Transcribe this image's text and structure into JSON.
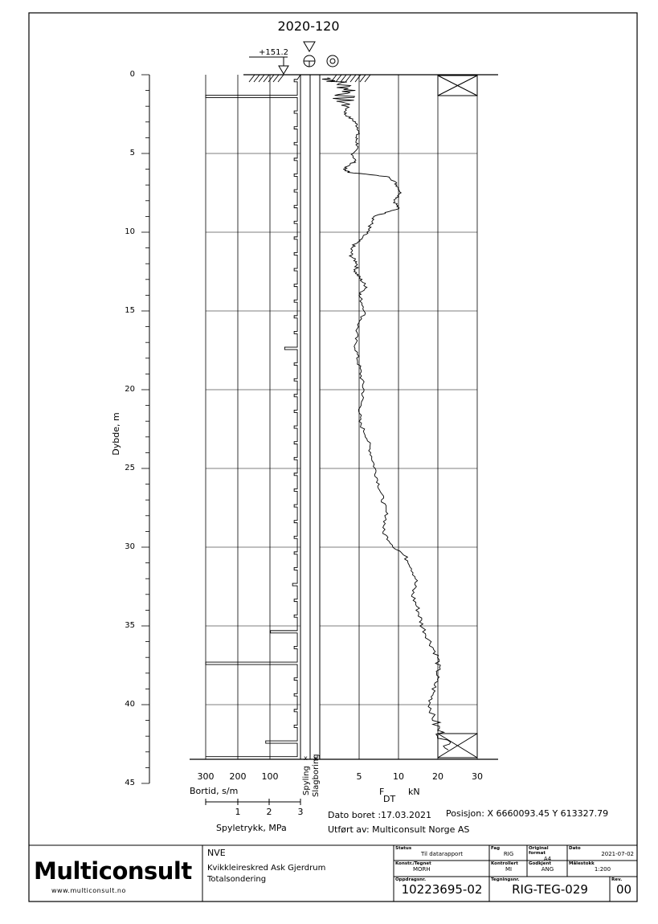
{
  "drawing": {
    "borehole_id": "2020-120",
    "elevation": "+151.2",
    "depth_axis_label": "Dybde, m",
    "depth_ticks": [
      "0",
      "5",
      "10",
      "15",
      "20",
      "25",
      "30",
      "35",
      "40",
      "45"
    ],
    "bortid_ticks": [
      "300",
      "200",
      "100"
    ],
    "bortid_label": "Bortid, s/m",
    "spyletrykk_ticks": [
      "1",
      "2",
      "3"
    ],
    "spyletrykk_label": "Spyletrykk, MPa",
    "column_label_1": "Spyling",
    "column_label_2": "Slagboring",
    "force_ticks": [
      "5",
      "10",
      "20",
      "30"
    ],
    "force_symbol": "F",
    "force_subscript": "DT",
    "force_unit": "kN",
    "date_text": "Dato boret :17.03.2021",
    "position_text": "Posisjon: X 6660093.45 Y 613327.79",
    "performed_by": "Utført av: Multiconsult Norge AS"
  },
  "title_block": {
    "logo": "Multiconsult",
    "website": "www.multiconsult.no",
    "client": "NVE",
    "project": "Kvikkleireskred Ask Gjerdrum",
    "subject": "Totalsondering",
    "status_label": "Status",
    "status_value": "Til datarapport",
    "fag_label": "Fag",
    "fag_value": "RIG",
    "format_label": "Original format",
    "format_value": "A4",
    "date_label": "Dato",
    "date_value": "2021-07-02",
    "konstr_label": "Konstr./Tegnet",
    "konstr_value": "MORH",
    "kontrollert_label": "Kontrollert",
    "kontrollert_value": "MI",
    "godkjent_label": "Godkjent",
    "godkjent_value": "ANG",
    "scale_label": "Målestokk",
    "scale_value": "1:200",
    "oppdrag_label": "Oppdragsnr.",
    "oppdrag_value": "10223695-02",
    "tegning_label": "Tegningsnr.",
    "tegning_value": "RIG-TEG-029",
    "rev_label": "Rev.",
    "rev_value": "00"
  },
  "chart_data": {
    "type": "line",
    "depth_range": [
      0,
      45
    ],
    "force_axis": {
      "label": "F DT kN",
      "ticks": [
        5,
        10,
        20,
        30
      ]
    },
    "force_profile": {
      "name": "F DT",
      "depth": [
        0.2,
        0.5,
        1.0,
        1.5,
        2.0,
        2.5,
        3.0,
        3.5,
        4.0,
        4.5,
        5.0,
        5.5,
        6.0,
        6.2,
        6.5,
        7.0,
        7.5,
        8.0,
        8.5,
        9.0,
        9.5,
        10.0,
        10.5,
        11.0,
        11.5,
        12.0,
        12.5,
        13.0,
        13.5,
        14.0,
        15.0,
        16.0,
        17.0,
        18.0,
        19.0,
        20.0,
        21.0,
        22.0,
        23.0,
        24.0,
        25.0,
        26.0,
        27.0,
        28.0,
        29.0,
        30.0,
        31.0,
        32.0,
        33.0,
        34.0,
        35.0,
        36.0,
        37.0,
        38.0,
        39.0,
        40.0,
        41.0,
        42.0,
        43.0
      ],
      "force": [
        1.0,
        2.5,
        4.0,
        2.8,
        3.5,
        3.2,
        4.5,
        5.0,
        4.6,
        4.8,
        4.2,
        4.5,
        3.0,
        3.8,
        9.0,
        9.8,
        10.5,
        9.5,
        10.0,
        7.0,
        6.5,
        6.0,
        5.0,
        4.0,
        4.0,
        4.8,
        4.5,
        5.2,
        6.0,
        5.0,
        5.8,
        4.8,
        4.5,
        4.8,
        5.2,
        5.6,
        5.2,
        5.0,
        6.0,
        6.5,
        7.0,
        7.5,
        8.0,
        8.5,
        8.0,
        9.5,
        13.0,
        14.5,
        13.5,
        15.0,
        16.0,
        18.0,
        20.0,
        20.0,
        19.0,
        18.0,
        19.0,
        21.0,
        24.0
      ]
    },
    "bortid_spikes": [
      {
        "depth": 1.3,
        "value": 300
      },
      {
        "depth": 17.7,
        "value": 50
      },
      {
        "depth": 19.8,
        "value": 30
      },
      {
        "depth": 23.8,
        "value": 40
      },
      {
        "depth": 29.8,
        "value": 35
      },
      {
        "depth": 31.8,
        "value": 25
      },
      {
        "depth": 33.8,
        "value": 80
      },
      {
        "depth": 35.7,
        "value": 95
      },
      {
        "depth": 37.7,
        "value": 300
      },
      {
        "depth": 42.2,
        "value": 110
      },
      {
        "depth": 43.0,
        "value": 300
      }
    ]
  }
}
